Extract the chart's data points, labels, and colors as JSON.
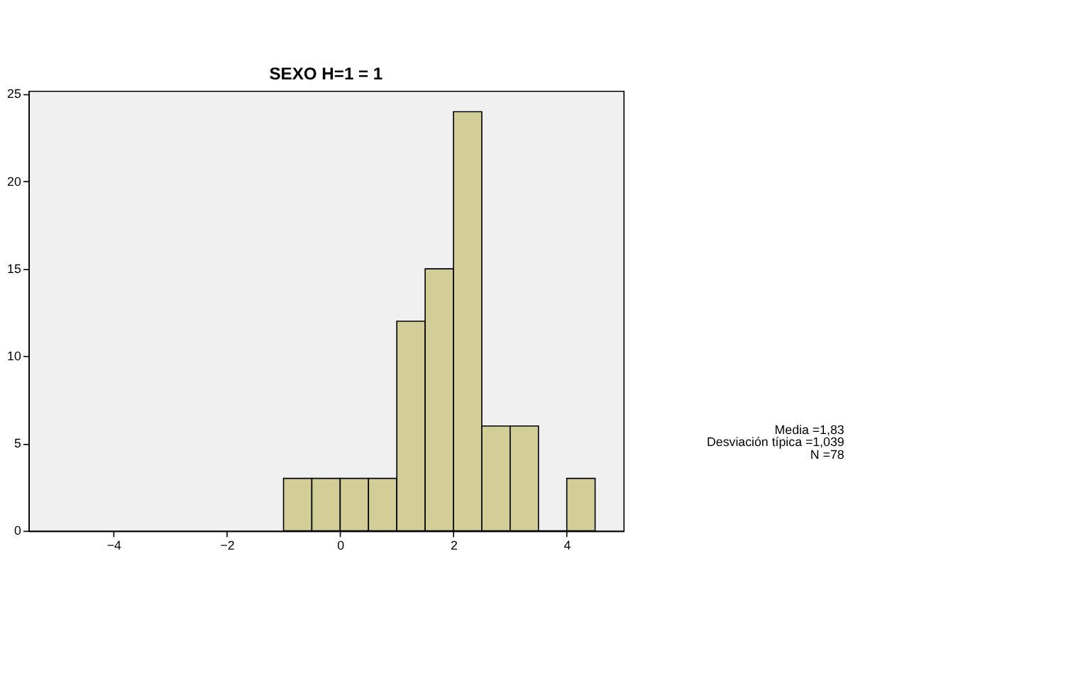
{
  "chart_data": {
    "type": "histogram",
    "title": "SEXO H=1 = 1",
    "bins": [
      -1,
      -0.5,
      0,
      0.5,
      1,
      1.5,
      2,
      2.5,
      3,
      3.5,
      4,
      4.5
    ],
    "values": [
      3,
      3,
      3,
      3,
      12,
      15,
      24,
      6,
      6,
      0,
      3
    ],
    "color": "#d3ce97",
    "xlim": [
      -5.5,
      5
    ],
    "xticks": [
      -4,
      -2,
      0,
      2,
      4
    ],
    "ylim": [
      0,
      25.2
    ],
    "yticks": [
      0,
      5,
      10,
      15,
      20,
      25
    ],
    "grid": false,
    "annotations": [
      "Media =1,83",
      "Desviación típica =1,039",
      "N =78"
    ]
  }
}
